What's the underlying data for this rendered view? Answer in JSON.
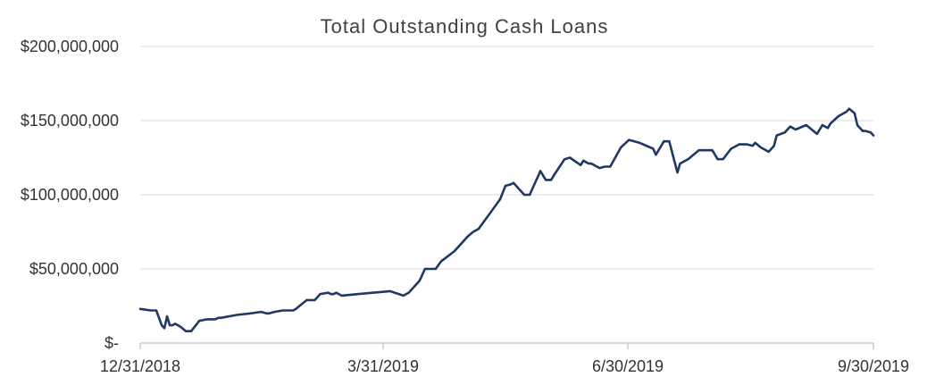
{
  "chart_data": {
    "type": "line",
    "title": "Total Outstanding Cash Loans",
    "xlabel": "",
    "ylabel": "",
    "ylim": [
      0,
      200000000
    ],
    "grid": true,
    "legend": "none",
    "x_tick_labels": [
      "12/31/2018",
      "3/31/2019",
      "6/30/2019",
      "9/30/2019"
    ],
    "y_ticks": [
      {
        "value": 0,
        "label": "$-"
      },
      {
        "value": 50000000,
        "label": "$50,000,000"
      },
      {
        "value": 100000000,
        "label": "$100,000,000"
      },
      {
        "value": 150000000,
        "label": "$150,000,000"
      },
      {
        "value": 200000000,
        "label": "$200,000,000"
      }
    ],
    "line_color": "#1f3864",
    "series": [
      {
        "name": "",
        "x": [
          "2018-12-31",
          "2019-01-04",
          "2019-01-06",
          "2019-01-08",
          "2019-01-09",
          "2019-01-10",
          "2019-01-11",
          "2019-01-12",
          "2019-01-13",
          "2019-01-15",
          "2019-01-17",
          "2019-01-19",
          "2019-01-22",
          "2019-01-25",
          "2019-01-28",
          "2019-01-29",
          "2019-01-30",
          "2019-02-05",
          "2019-02-10",
          "2019-02-14",
          "2019-02-16",
          "2019-02-17",
          "2019-02-19",
          "2019-02-22",
          "2019-02-26",
          "2019-02-27",
          "2019-03-01",
          "2019-03-03",
          "2019-03-06",
          "2019-03-08",
          "2019-03-11",
          "2019-03-12",
          "2019-03-13",
          "2019-03-14",
          "2019-03-16",
          "2019-03-22",
          "2019-03-28",
          "2019-04-03",
          "2019-04-08",
          "2019-04-10",
          "2019-04-14",
          "2019-04-16",
          "2019-04-20",
          "2019-04-22",
          "2019-04-27",
          "2019-05-02",
          "2019-05-04",
          "2019-05-06",
          "2019-05-10",
          "2019-05-14",
          "2019-05-16",
          "2019-05-18",
          "2019-05-19",
          "2019-05-23",
          "2019-05-25",
          "2019-05-28",
          "2019-05-29",
          "2019-05-31",
          "2019-06-02",
          "2019-06-03",
          "2019-06-07",
          "2019-06-09",
          "2019-06-13",
          "2019-06-14",
          "2019-06-16",
          "2019-06-17",
          "2019-06-20",
          "2019-06-22",
          "2019-06-24",
          "2019-06-28",
          "2019-07-01",
          "2019-07-03",
          "2019-07-05",
          "2019-07-10",
          "2019-07-11",
          "2019-07-14",
          "2019-07-16",
          "2019-07-19",
          "2019-07-20",
          "2019-07-23",
          "2019-07-27",
          "2019-08-01",
          "2019-08-03",
          "2019-08-05",
          "2019-08-08",
          "2019-08-11",
          "2019-08-14",
          "2019-08-16",
          "2019-08-17",
          "2019-08-19",
          "2019-08-22",
          "2019-08-24",
          "2019-08-25",
          "2019-08-28",
          "2019-08-30",
          "2019-09-01",
          "2019-09-05",
          "2019-09-09",
          "2019-09-11",
          "2019-09-13",
          "2019-09-14",
          "2019-09-17",
          "2019-09-20",
          "2019-09-21",
          "2019-09-23",
          "2019-09-24",
          "2019-09-26",
          "2019-09-27",
          "2019-09-29",
          "2019-09-30"
        ],
        "y": [
          23000000,
          22000000,
          22000000,
          12000000,
          10000000,
          18000000,
          12000000,
          12000000,
          13000000,
          11000000,
          8000000,
          8000000,
          15000000,
          16000000,
          16000000,
          17000000,
          17000000,
          19000000,
          20000000,
          21000000,
          20000000,
          20000000,
          21000000,
          22000000,
          22000000,
          23000000,
          26000000,
          29000000,
          29000000,
          33000000,
          34000000,
          33000000,
          33000000,
          34000000,
          32000000,
          33000000,
          34000000,
          35000000,
          32000000,
          34000000,
          42000000,
          50000000,
          50000000,
          55000000,
          62000000,
          72000000,
          75000000,
          77000000,
          87000000,
          97000000,
          106000000,
          107000000,
          108000000,
          100000000,
          100000000,
          112000000,
          116000000,
          110000000,
          110000000,
          113000000,
          124000000,
          125000000,
          120000000,
          123000000,
          121000000,
          121000000,
          118000000,
          119000000,
          119000000,
          132000000,
          137000000,
          136000000,
          135000000,
          131000000,
          127000000,
          136000000,
          136000000,
          115000000,
          121000000,
          124000000,
          130000000,
          130000000,
          124000000,
          124000000,
          131000000,
          134000000,
          134000000,
          133000000,
          135000000,
          132000000,
          129000000,
          133000000,
          140000000,
          142000000,
          146000000,
          144000000,
          147000000,
          141000000,
          147000000,
          145000000,
          148000000,
          153000000,
          156000000,
          158000000,
          155000000,
          147000000,
          143000000,
          143000000,
          142000000,
          140000000
        ]
      }
    ]
  }
}
